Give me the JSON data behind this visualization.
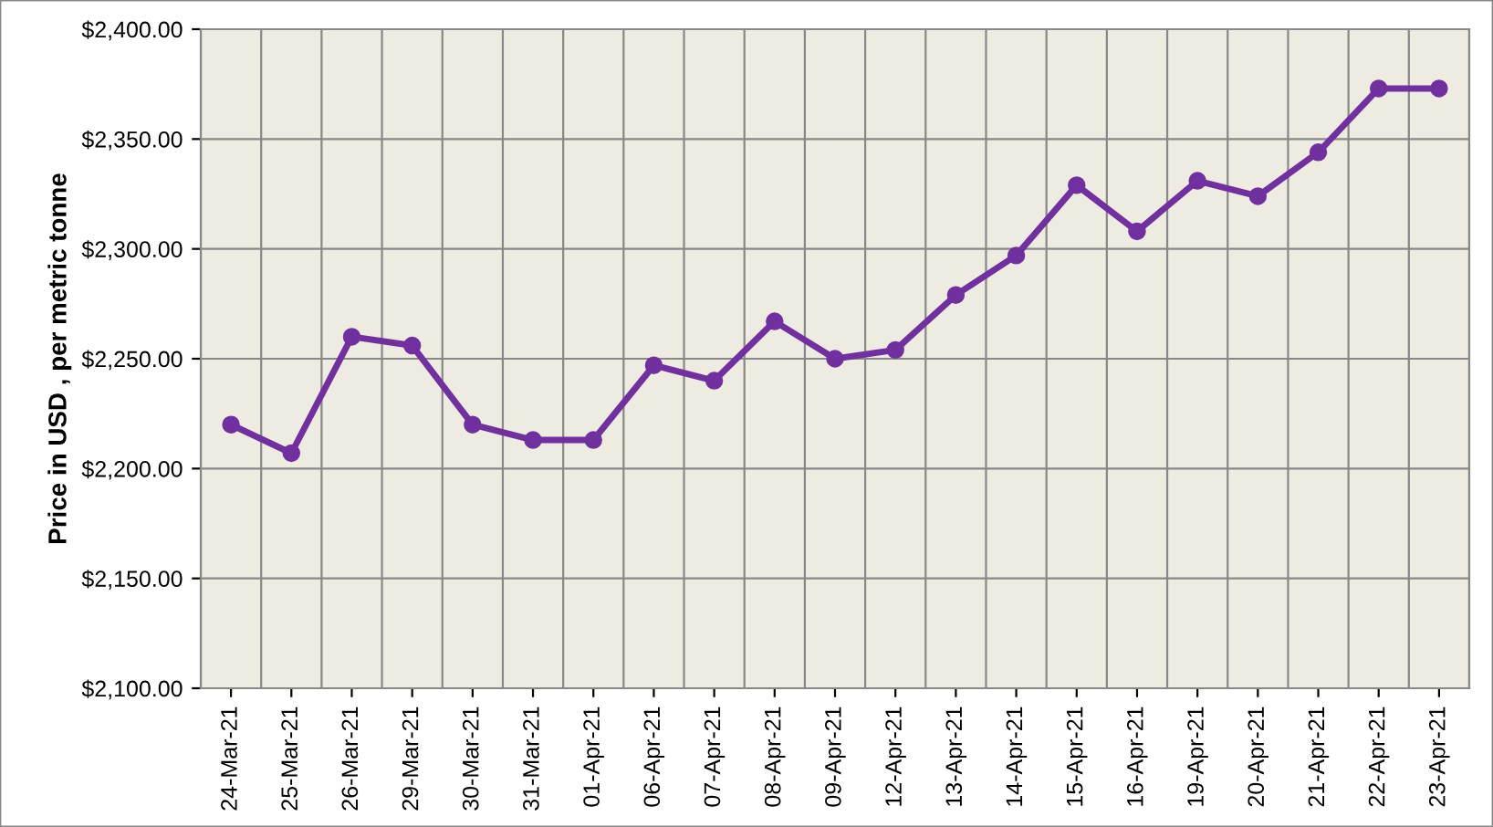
{
  "chart_data": {
    "type": "line",
    "ylabel": "Price in USD , per metric tonne",
    "categories": [
      "24-Mar-21",
      "25-Mar-21",
      "26-Mar-21",
      "29-Mar-21",
      "30-Mar-21",
      "31-Mar-21",
      "01-Apr-21",
      "06-Apr-21",
      "07-Apr-21",
      "08-Apr-21",
      "09-Apr-21",
      "12-Apr-21",
      "13-Apr-21",
      "14-Apr-21",
      "15-Apr-21",
      "16-Apr-21",
      "19-Apr-21",
      "20-Apr-21",
      "21-Apr-21",
      "22-Apr-21",
      "23-Apr-21"
    ],
    "series": [
      {
        "color": "#7030a0",
        "values": [
          2220,
          2207,
          2260,
          2256,
          2220,
          2213,
          2213,
          2247,
          2240,
          2267,
          2250,
          2254,
          2279,
          2297,
          2329,
          2308,
          2331,
          2324,
          2344,
          2373,
          2373
        ]
      }
    ],
    "ylim": [
      2100,
      2400
    ],
    "yticks": [
      {
        "value": 2100,
        "label": "$2,100.00"
      },
      {
        "value": 2150,
        "label": "$2,150.00"
      },
      {
        "value": 2200,
        "label": "$2,200.00"
      },
      {
        "value": 2250,
        "label": "$2,250.00"
      },
      {
        "value": 2300,
        "label": "$2,300.00"
      },
      {
        "value": 2350,
        "label": "$2,350.00"
      },
      {
        "value": 2400,
        "label": "$2,400.00"
      }
    ],
    "grid": true,
    "marker": "circle",
    "line_style": "solid",
    "legend": false
  }
}
